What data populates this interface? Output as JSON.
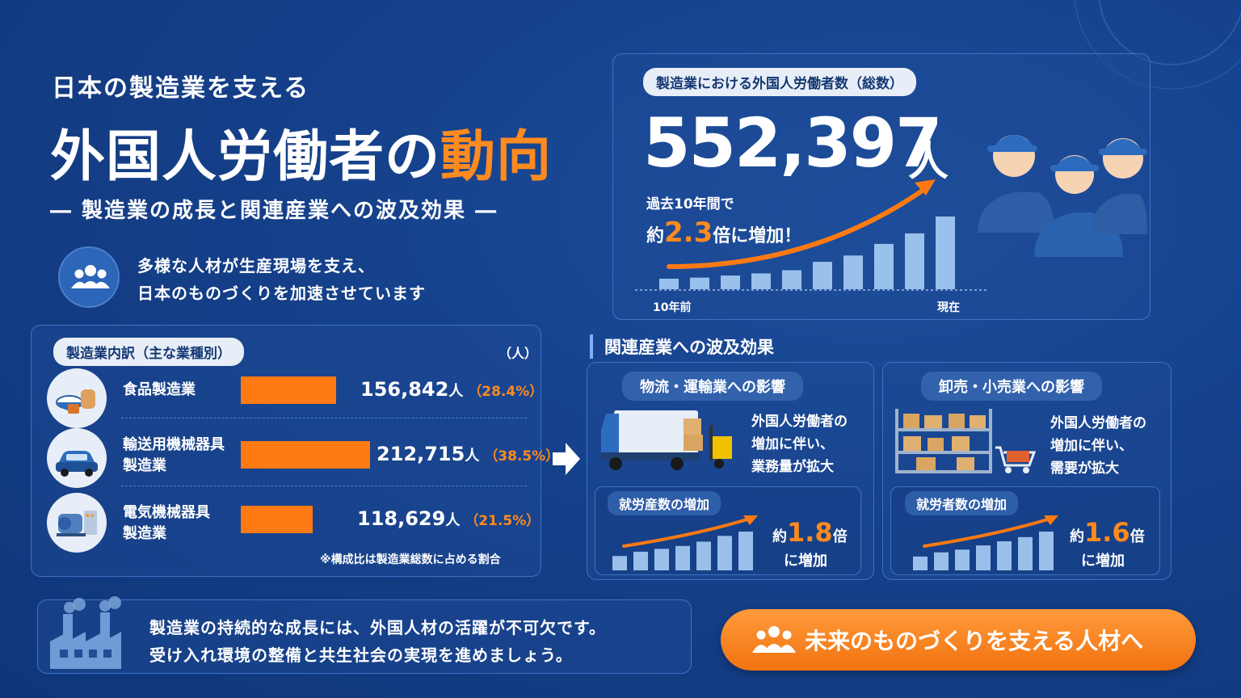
{
  "header": {
    "subtitle": "日本の製造業を支える",
    "title_main": "外国人労働者の",
    "title_accent": "動向",
    "tagline": "― 製造業の成長と関連産業への波及効果 ―"
  },
  "intro": {
    "line1": "多様な人材が生産現場を支え、",
    "line2": "日本のものづくりを加速させています",
    "icon": "people-icon"
  },
  "total": {
    "label": "製造業における外国人労働者数（総数）",
    "number": "552,397",
    "unit": "人",
    "growth_line1": "過去10年間で",
    "growth_prefix": "約",
    "growth_value": "2.3",
    "growth_suffix": "倍に増加！",
    "axis_start": "10年前",
    "axis_end": "現在"
  },
  "breakdown": {
    "label": "製造業内訳（主な業種別）",
    "unit": "（人）",
    "note": "※構成比は製造業総数に占める割合",
    "items": [
      {
        "line1": "食品製造業",
        "line2": "",
        "value": "156,842",
        "unit": "人",
        "pct": "（28.4%）",
        "icon": "food-icon"
      },
      {
        "line1": "輸送用機械器具",
        "line2": "製造業",
        "value": "212,715",
        "unit": "人",
        "pct": "（38.5%）",
        "icon": "car-icon"
      },
      {
        "line1": "電気機械器具",
        "line2": "製造業",
        "value": "118,629",
        "unit": "人",
        "pct": "（21.5%）",
        "icon": "motor-icon"
      }
    ]
  },
  "impact": {
    "section_title": "関連産業への波及効果",
    "logistics": {
      "title": "物流・運輸業への影響",
      "text1": "外国人労働者の",
      "text2": "増加に伴い、",
      "text3": "業務量が拡大",
      "sub_label": "就労産数の増加",
      "prefix": "約",
      "value": "1.8",
      "suffix": "倍",
      "line2": "に増加"
    },
    "retail": {
      "title": "卸売・小売業への影響",
      "text1": "外国人労働者の",
      "text2": "増加に伴い、",
      "text3": "需要が拡大",
      "sub_label": "就労者数の増加",
      "prefix": "約",
      "value": "1.6",
      "suffix": "倍",
      "line2": "に増加"
    }
  },
  "footer": {
    "line1": "製造業の持続的な成長には、外国人材の活躍が不可欠です。",
    "line2": "受け入れ環境の整備と共生社会の実現を進めましょう。",
    "cta": "未来のものづくりを支える人材へ"
  },
  "colors": {
    "background": "#15408a",
    "accent": "#ff8a1f",
    "bar_light": "#a9cdf5",
    "pill_bg": "#e8eef7"
  },
  "chart_data": [
    {
      "type": "bar",
      "title": "製造業における外国人労働者数（総数）",
      "categories": [
        "10年前",
        "",
        "",
        "",
        "",
        "",
        "",
        "",
        "",
        "現在"
      ],
      "values": [
        1.0,
        1.1,
        1.3,
        1.5,
        1.8,
        2.6,
        3.2,
        4.3,
        5.3,
        6.9
      ],
      "note": "relative bar heights; total 552,397人, 約2.3倍"
    },
    {
      "type": "bar",
      "title": "製造業内訳（主な業種別）",
      "categories": [
        "食品製造業",
        "輸送用機械器具製造業",
        "電気機械器具製造業"
      ],
      "values": [
        156842,
        212715,
        118629
      ],
      "percent": [
        28.4,
        38.5,
        21.5
      ],
      "ylabel": "（人）"
    },
    {
      "type": "bar",
      "title": "就労産数の増加",
      "values": [
        1.0,
        1.3,
        1.5,
        1.7,
        2.0,
        2.4,
        2.7
      ],
      "multiplier": 1.8
    },
    {
      "type": "bar",
      "title": "就労者数の増加",
      "values": [
        1.0,
        1.3,
        1.5,
        1.8,
        2.1,
        2.4,
        2.8
      ],
      "multiplier": 1.6
    }
  ]
}
